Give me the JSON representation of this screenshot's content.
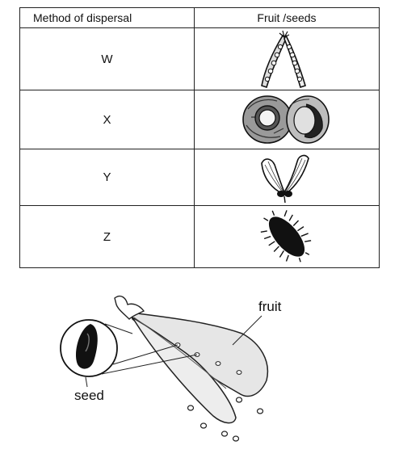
{
  "table": {
    "headers": [
      "Method of dispersal",
      "Fruit /seeds"
    ],
    "rows": [
      {
        "label": "W",
        "icon": "pea-pod-icon"
      },
      {
        "label": "X",
        "icon": "coconut-icon"
      },
      {
        "label": "Y",
        "icon": "winged-fruit-icon"
      },
      {
        "label": "Z",
        "icon": "hooked-fruit-icon"
      }
    ]
  },
  "diagram": {
    "fruit_label": "fruit",
    "seed_label": "seed",
    "icon": "split-pod-diagram-icon"
  }
}
